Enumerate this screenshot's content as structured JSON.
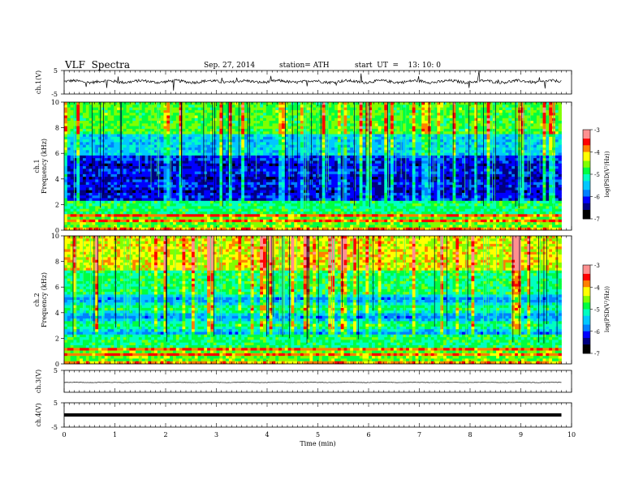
{
  "header": {
    "title": "VLF  Spectra",
    "date": "Sep. 27, 2014",
    "station": "station= ATH",
    "start": "start  UT  =    13: 10: 0"
  },
  "chart_data": {
    "type": "heatmap",
    "xlabel": "Time  (min)",
    "xlim": [
      0,
      10
    ],
    "xticks": [
      "0",
      "1",
      "2",
      "3",
      "4",
      "5",
      "6",
      "7",
      "8",
      "9",
      "10"
    ],
    "panels": [
      {
        "id": "ch1-voltage",
        "type": "line",
        "ylabel": "ch.1(V)",
        "ylim": [
          -5,
          5
        ],
        "yticks": [
          "5",
          "-5"
        ],
        "level_V": 0.3,
        "noise_V": 0.6,
        "time_range_min": [
          0,
          9.8
        ]
      },
      {
        "id": "ch1-spectrogram",
        "type": "heatmap",
        "ylabel": "ch.1\nFrequency (kHz)",
        "ylim_kHz": [
          0,
          10
        ],
        "yticks": [
          "0",
          "2",
          "4",
          "6",
          "8",
          "10"
        ],
        "time_range_min": [
          0,
          9.8
        ],
        "profile": "ch1",
        "colorbar": {
          "label": "log(PSD(V²/Hz))",
          "range": [
            -7,
            -3
          ],
          "ticks": [
            "-3",
            "-4",
            "-5",
            "-6",
            "-7"
          ]
        }
      },
      {
        "id": "ch2-spectrogram",
        "type": "heatmap",
        "ylabel": "ch.2\nFrequency (kHz)",
        "ylim_kHz": [
          0,
          10
        ],
        "yticks": [
          "0",
          "2",
          "4",
          "6",
          "8",
          "10"
        ],
        "time_range_min": [
          0,
          9.8
        ],
        "profile": "ch2",
        "colorbar": {
          "label": "log(PSD(V²/Hz))",
          "range": [
            -7,
            -3
          ],
          "ticks": [
            "-3",
            "-4",
            "-5",
            "-6",
            "-7"
          ]
        }
      },
      {
        "id": "ch3-voltage",
        "type": "line",
        "ylabel": "ch.3(V)",
        "ylim": [
          -5,
          5
        ],
        "yticks": [
          "5"
        ],
        "level_V": -0.5,
        "noise_V": 0.1,
        "time_range_min": [
          0,
          9.8
        ]
      },
      {
        "id": "ch4-voltage",
        "type": "line",
        "ylabel": "ch.4(V)",
        "ylim": [
          -5,
          5
        ],
        "yticks": [
          "5",
          "-5"
        ],
        "level_V": 0.0,
        "noise_V": 0.0,
        "line_weight": "heavy",
        "time_range_min": [
          0,
          9.8
        ]
      }
    ],
    "colormap": [
      "#000000",
      "#000080",
      "#0000ff",
      "#0080ff",
      "#00c8ff",
      "#00ffc0",
      "#00ff40",
      "#80ff00",
      "#ffff00",
      "#ff8000",
      "#ff0000",
      "#ff9090",
      "#ffffff"
    ]
  }
}
